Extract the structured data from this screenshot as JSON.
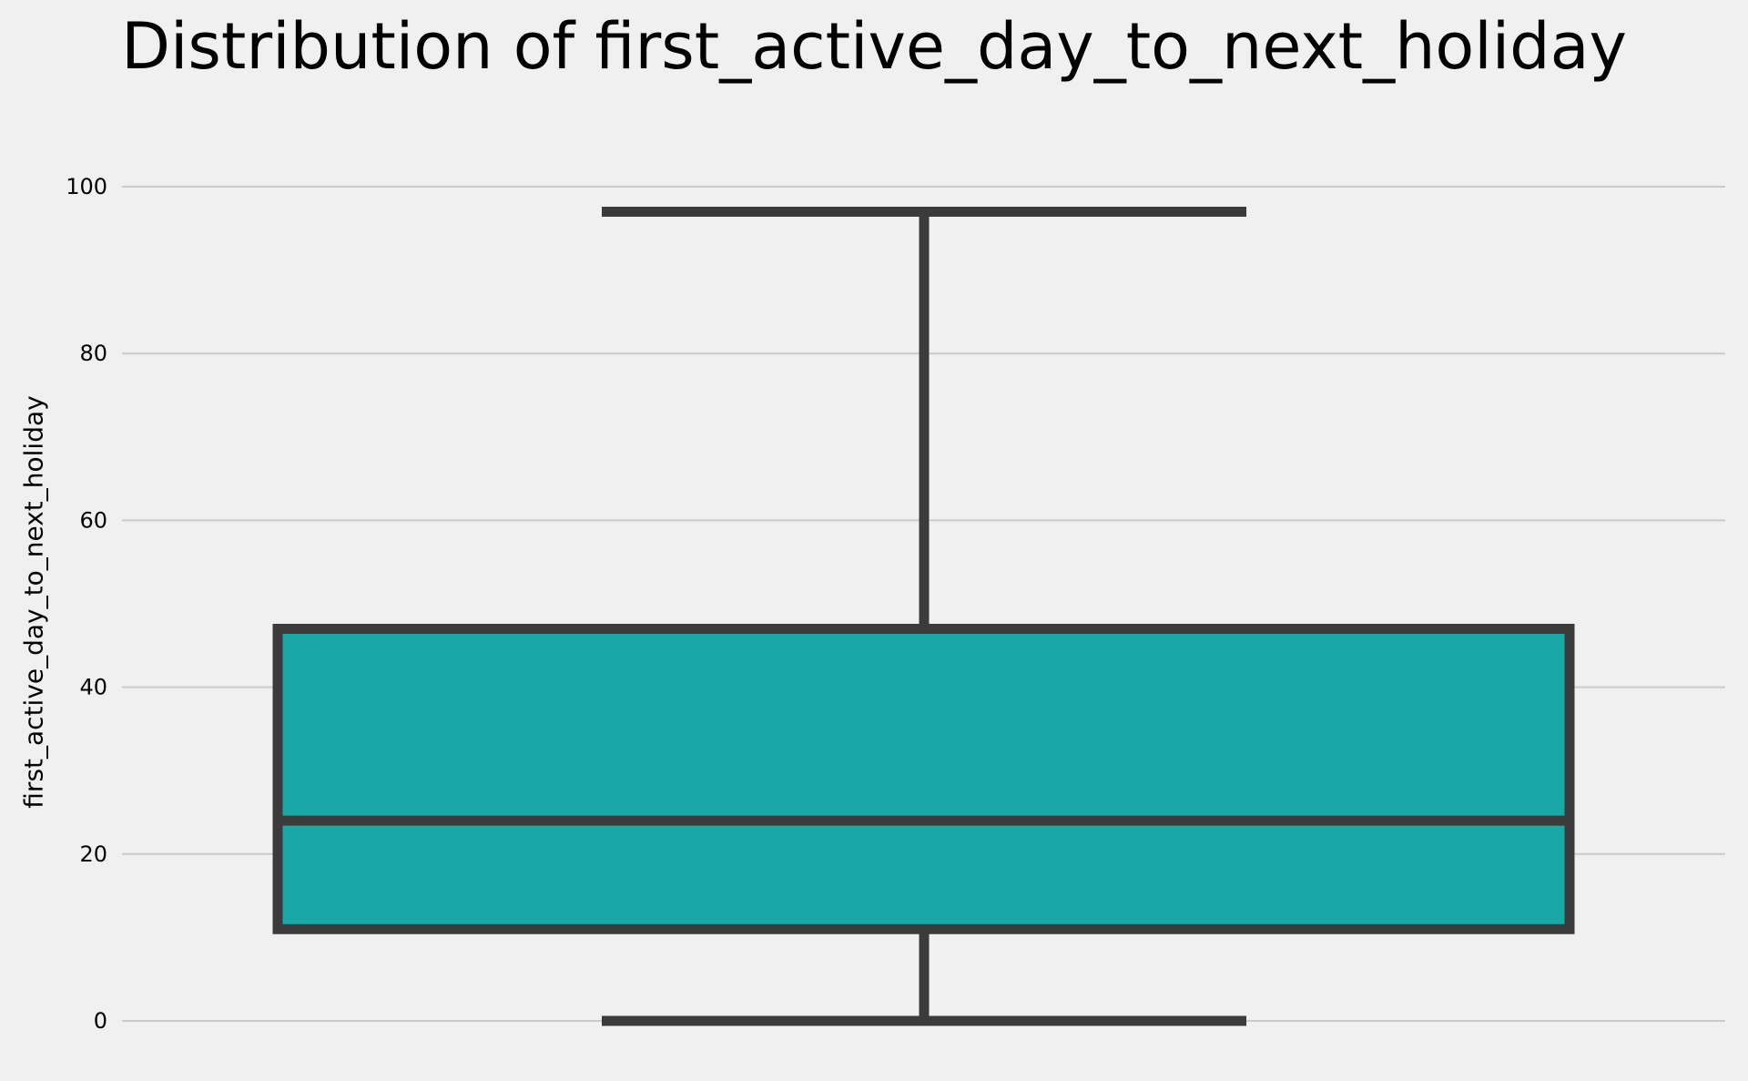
{
  "chart_data": {
    "type": "box",
    "title": "Distribution of first_active_day_to_next_holiday",
    "xlabel": "",
    "ylabel": "first_active_day_to_next_holiday",
    "ylim": [
      -6,
      107
    ],
    "yticks": [
      0,
      20,
      40,
      60,
      80,
      100
    ],
    "grid": true,
    "boxes": [
      {
        "whisker_low": 0,
        "q1": 11,
        "median": 24,
        "q3": 47,
        "whisker_high": 97
      }
    ],
    "colors": {
      "box_fill": "#19a8a8",
      "line": "#3b3b3b",
      "grid": "#cbcbcb",
      "background": "#f0f0f0"
    }
  }
}
